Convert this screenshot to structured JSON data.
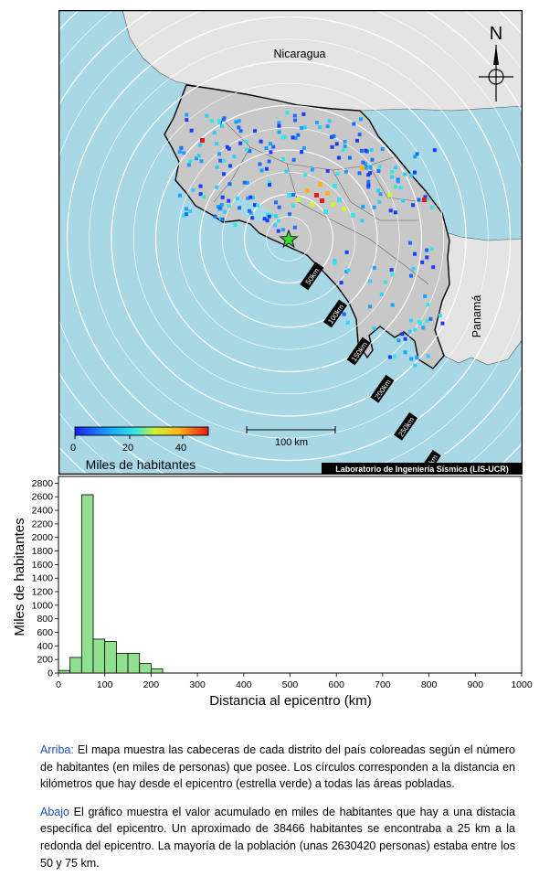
{
  "map": {
    "country_labels": [
      "Nicaragua",
      "Panamá"
    ],
    "north_label": "N",
    "ring_labels": [
      "50km",
      "100km",
      "150km",
      "200km",
      "250km",
      "300km",
      "350km"
    ],
    "scale_label": "100 km",
    "colorbar": {
      "ticks": [
        "0",
        "20",
        "40"
      ],
      "title": "Miles de habitantes"
    },
    "credit": "Laboratorio de Ingeniería Sísmica (LIS-UCR)",
    "colors": {
      "sea": "#a8d8e6",
      "land": "#c8c8c8",
      "neighbor": "#e4e4e4",
      "epicenter": "#33dd33"
    }
  },
  "chart_data": {
    "type": "bar",
    "xlabel": "Distancia al epicentro (km)",
    "ylabel": "Miles de habitantes",
    "xlim": [
      0,
      1000
    ],
    "ylim": [
      0,
      2900
    ],
    "xticks": [
      0,
      100,
      200,
      300,
      400,
      500,
      600,
      700,
      800,
      900,
      1000
    ],
    "yticks": [
      0,
      200,
      400,
      600,
      800,
      1000,
      1200,
      1400,
      1600,
      1800,
      2000,
      2200,
      2400,
      2600,
      2800
    ],
    "bin_width": 25,
    "bins": [
      {
        "x0": 0,
        "x1": 25,
        "value": 38
      },
      {
        "x0": 25,
        "x1": 50,
        "value": 230
      },
      {
        "x0": 50,
        "x1": 75,
        "value": 2630
      },
      {
        "x0": 75,
        "x1": 100,
        "value": 500
      },
      {
        "x0": 100,
        "x1": 125,
        "value": 465
      },
      {
        "x0": 125,
        "x1": 150,
        "value": 290
      },
      {
        "x0": 150,
        "x1": 175,
        "value": 290
      },
      {
        "x0": 175,
        "x1": 200,
        "value": 140
      },
      {
        "x0": 200,
        "x1": 225,
        "value": 60
      }
    ],
    "bar_color": "#90e090"
  },
  "caption": {
    "p1_lead": "Arriba:",
    "p1_text": " El mapa muestra las cabeceras de cada distrito del país coloreadas según el número de habitantes (en miles de personas) que posee.  Los círculos corresponden a la distancia en kilómetros que hay desde el epicentro (estrella verde) a todas las áreas pobladas.",
    "p2_lead": "Abajo",
    "p2_text": " El gráfico muestra el valor acumulado en miles de habitantes que hay a una distacia específica del epicentro.  Un aproximado de 38466 habitantes se encontraba a 25 km a la redonda del epicentro.  La mayoría de la población (unas 2630420 personas) estaba entre los 50 y 75 km."
  }
}
